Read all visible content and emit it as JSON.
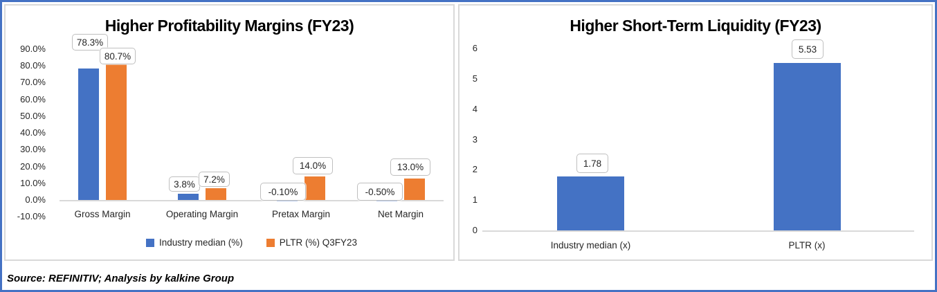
{
  "source_note": "Source: REFINITIV; Analysis by kalkine Group",
  "colors": {
    "series_blue": "#4472C4",
    "series_orange": "#ED7D31",
    "frame_border": "#4472C4",
    "panel_border": "#D9D9D9",
    "axis_line": "#D9D9D9",
    "callout_border": "#BFBFBF"
  },
  "chart_data": [
    {
      "type": "bar",
      "title": "Higher Profitability Margins (FY23)",
      "xlabel": "",
      "ylabel": "",
      "categories": [
        "Gross Margin",
        "Operating Margin",
        "Pretax Margin",
        "Net Margin"
      ],
      "series": [
        {
          "name": "Industry median (%)",
          "color": "#4472C4",
          "values": [
            78.3,
            3.8,
            -0.1,
            -0.5
          ],
          "labels": [
            "78.3%",
            "3.8%",
            "-0.10%",
            "-0.50%"
          ]
        },
        {
          "name": "PLTR (%) Q3FY23",
          "color": "#ED7D31",
          "values": [
            80.7,
            7.2,
            14.0,
            13.0
          ],
          "labels": [
            "80.7%",
            "7.2%",
            "14.0%",
            "13.0%"
          ]
        }
      ],
      "y_ticks": [
        "90.0%",
        "80.0%",
        "70.0%",
        "60.0%",
        "50.0%",
        "40.0%",
        "30.0%",
        "20.0%",
        "10.0%",
        "0.0%",
        "-10.0%"
      ],
      "ylim": [
        -10,
        90
      ],
      "grid": false,
      "legend_position": "bottom"
    },
    {
      "type": "bar",
      "title": "Higher Short-Term Liquidity (FY23)",
      "xlabel": "",
      "ylabel": "",
      "categories": [
        "Industry median (x)",
        "PLTR (x)"
      ],
      "series": [
        {
          "name": "",
          "color": "#4472C4",
          "values": [
            1.78,
            5.53
          ],
          "labels": [
            "1.78",
            "5.53"
          ]
        }
      ],
      "y_ticks": [
        "6",
        "5",
        "4",
        "3",
        "2",
        "1",
        "0"
      ],
      "ylim": [
        0,
        6
      ],
      "grid": false,
      "legend_position": "none"
    }
  ]
}
